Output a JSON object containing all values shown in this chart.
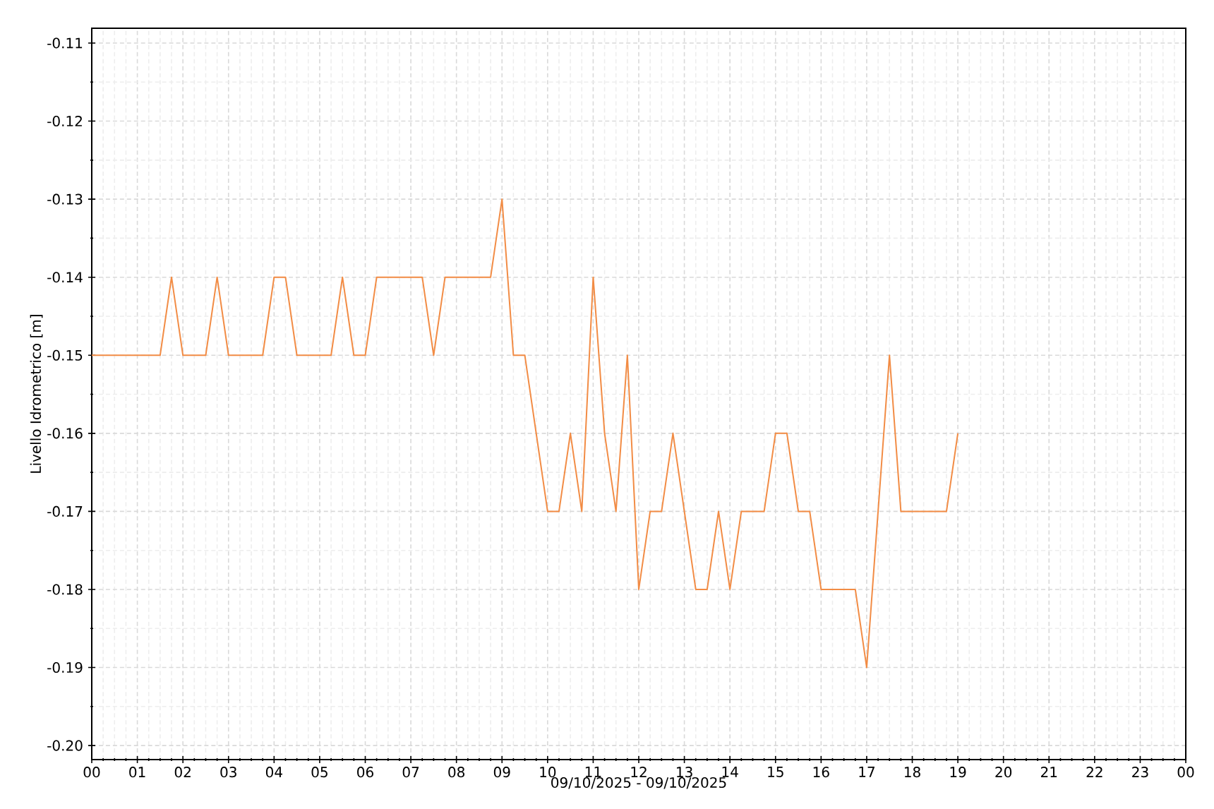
{
  "chart_data": {
    "type": "line",
    "xlabel": "09/10/2025 - 09/10/2025",
    "ylabel": "Livello Idrometrico [m]",
    "x": [
      0,
      1.5,
      1.75,
      2,
      2.5,
      2.75,
      3,
      3.75,
      4,
      4.25,
      4.5,
      5.25,
      5.5,
      5.75,
      6,
      6.25,
      7.25,
      7.5,
      7.75,
      8.75,
      9,
      9.25,
      9.5,
      10,
      10.25,
      10.5,
      10.75,
      11,
      11.25,
      11.5,
      11.75,
      12,
      12.25,
      12.5,
      12.75,
      13.25,
      13.5,
      13.75,
      14,
      14.25,
      14.75,
      15,
      15.25,
      15.5,
      15.75,
      16,
      16.75,
      17,
      17.5,
      17.75,
      18.75,
      19
    ],
    "values": [
      -0.15,
      -0.15,
      -0.14,
      -0.15,
      -0.15,
      -0.14,
      -0.15,
      -0.15,
      -0.14,
      -0.14,
      -0.15,
      -0.15,
      -0.14,
      -0.15,
      -0.15,
      -0.14,
      -0.14,
      -0.15,
      -0.14,
      -0.14,
      -0.13,
      -0.15,
      -0.15,
      -0.17,
      -0.17,
      -0.16,
      -0.17,
      -0.14,
      -0.16,
      -0.17,
      -0.15,
      -0.18,
      -0.17,
      -0.17,
      -0.16,
      -0.18,
      -0.18,
      -0.17,
      -0.18,
      -0.17,
      -0.17,
      -0.16,
      -0.16,
      -0.17,
      -0.17,
      -0.18,
      -0.18,
      -0.19,
      -0.15,
      -0.17,
      -0.17,
      -0.16
    ],
    "color": "#f28c45",
    "xlim": [
      0,
      24
    ],
    "xticks": [
      {
        "value": 0,
        "label": "00"
      },
      {
        "value": 1,
        "label": "01"
      },
      {
        "value": 2,
        "label": "02"
      },
      {
        "value": 3,
        "label": "03"
      },
      {
        "value": 4,
        "label": "04"
      },
      {
        "value": 5,
        "label": "05"
      },
      {
        "value": 6,
        "label": "06"
      },
      {
        "value": 7,
        "label": "07"
      },
      {
        "value": 8,
        "label": "08"
      },
      {
        "value": 9,
        "label": "09"
      },
      {
        "value": 10,
        "label": "10"
      },
      {
        "value": 11,
        "label": "11"
      },
      {
        "value": 12,
        "label": "12"
      },
      {
        "value": 13,
        "label": "13"
      },
      {
        "value": 14,
        "label": "14"
      },
      {
        "value": 15,
        "label": "15"
      },
      {
        "value": 16,
        "label": "16"
      },
      {
        "value": 17,
        "label": "17"
      },
      {
        "value": 18,
        "label": "18"
      },
      {
        "value": 19,
        "label": "19"
      },
      {
        "value": 20,
        "label": "20"
      },
      {
        "value": 21,
        "label": "21"
      },
      {
        "value": 22,
        "label": "22"
      },
      {
        "value": 23,
        "label": "23"
      },
      {
        "value": 24,
        "label": "00"
      }
    ],
    "ylim": [
      -0.2018,
      -0.1081
    ],
    "yticks": [
      -0.11,
      -0.12,
      -0.13,
      -0.14,
      -0.15,
      -0.16,
      -0.17,
      -0.18,
      -0.19,
      {
        "value": -0.2,
        "label": "-0.20"
      }
    ],
    "grid": true
  }
}
